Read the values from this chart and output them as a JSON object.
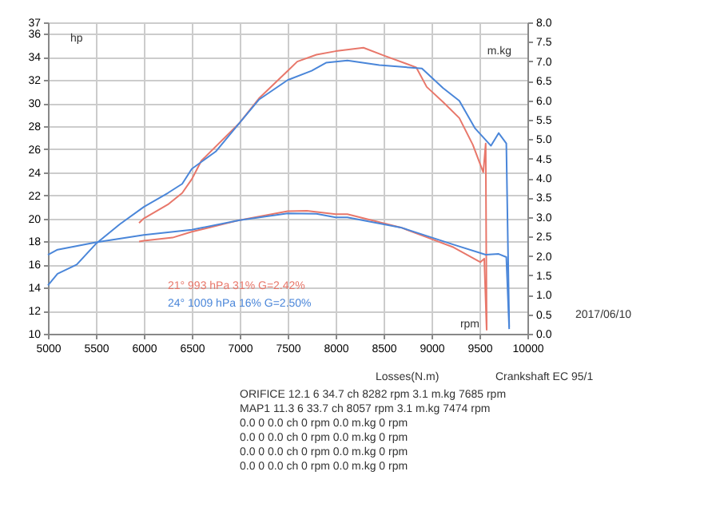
{
  "chart_data": {
    "type": "line",
    "xlabel": "rpm",
    "ylabel": "hp",
    "y2label": "m.kg",
    "xlim": [
      5000,
      10000
    ],
    "xticks": [
      5000,
      5500,
      6000,
      6500,
      7000,
      7500,
      8000,
      8500,
      9000,
      9500,
      10000
    ],
    "ylim": [
      10,
      37
    ],
    "yticks": [
      10,
      12,
      14,
      16,
      18,
      20,
      22,
      24,
      26,
      28,
      30,
      32,
      34,
      36,
      37
    ],
    "y2lim": [
      0,
      8
    ],
    "y2ticks": [
      {
        "value": 0,
        "label": "0.0"
      },
      {
        "value": 0.5,
        "label": "0.5"
      },
      {
        "value": 1,
        "label": "1.0"
      },
      {
        "value": 1.5,
        "label": "1.5"
      },
      {
        "value": 2,
        "label": "2.0"
      },
      {
        "value": 2.5,
        "label": "2.5"
      },
      {
        "value": 3,
        "label": "3.0"
      },
      {
        "value": 3.5,
        "label": "3.5"
      },
      {
        "value": 4,
        "label": "4.0"
      },
      {
        "value": 4.5,
        "label": "4.5"
      },
      {
        "value": 5,
        "label": "5.0"
      },
      {
        "value": 5.5,
        "label": "5.5"
      },
      {
        "value": 6,
        "label": "6.0"
      },
      {
        "value": 6.5,
        "label": "6.5"
      },
      {
        "value": 7,
        "label": "7.0"
      },
      {
        "value": 7.5,
        "label": "7.5"
      },
      {
        "value": 8,
        "label": "8.0"
      }
    ],
    "grid": true,
    "line_style": "solid",
    "marker": "none",
    "series": [
      {
        "color": "#e8776a",
        "x": [
          5950,
          6000,
          6250,
          6400,
          6500,
          6600,
          7000,
          7200,
          7400,
          7500,
          7600,
          7800,
          8000,
          8290,
          8510,
          8840,
          8950,
          9120,
          9290,
          9430,
          9540,
          9565,
          9575
        ],
        "values": [
          19.6,
          20.0,
          21.2,
          22.2,
          23.4,
          25.0,
          28.3,
          30.4,
          32.0,
          32.8,
          33.6,
          34.2,
          34.5,
          34.8,
          34.1,
          33.1,
          31.4,
          30.1,
          28.7,
          26.4,
          24.0,
          26.5,
          10.3
        ]
      },
      {
        "color": "#4a86d9",
        "x": [
          5000,
          5100,
          5300,
          5500,
          5750,
          6000,
          6250,
          6400,
          6500,
          6750,
          7000,
          7200,
          7500,
          7750,
          7900,
          8123,
          8455,
          8900,
          9120,
          9290,
          9455,
          9620,
          9700,
          9780,
          9810
        ],
        "values": [
          14.2,
          15.2,
          16.0,
          17.8,
          19.5,
          21.0,
          22.2,
          23.0,
          24.3,
          25.8,
          28.3,
          30.3,
          32.0,
          32.8,
          33.5,
          33.7,
          33.3,
          33.0,
          31.3,
          30.2,
          27.8,
          26.3,
          27.4,
          26.5,
          10.6
        ]
      },
      {
        "color": "#e8776a",
        "axis": "y2",
        "x": [
          5950,
          6000,
          6300,
          6500,
          7000,
          7500,
          7700,
          8000,
          8123,
          8680,
          8950,
          9230,
          9510,
          9550,
          9575
        ],
        "values": [
          2.37,
          2.39,
          2.47,
          2.62,
          2.92,
          3.15,
          3.16,
          3.07,
          3.07,
          2.73,
          2.48,
          2.22,
          1.84,
          1.93,
          0.1
        ]
      },
      {
        "color": "#4a86d9",
        "axis": "y2",
        "x": [
          5000,
          5100,
          5500,
          6000,
          6500,
          7000,
          7500,
          7800,
          8000,
          8123,
          8680,
          9230,
          9565,
          9700,
          9780,
          9810
        ],
        "values": [
          2.03,
          2.16,
          2.35,
          2.54,
          2.67,
          2.92,
          3.09,
          3.08,
          2.99,
          2.99,
          2.73,
          2.29,
          2.03,
          2.05,
          1.97,
          0.12
        ]
      }
    ],
    "annotations": [
      "21° 993 hPa 31% G=2.42%",
      "24° 1009 hPa 16% G=2.50%",
      "2017/06/10",
      "Losses(N.m)",
      "Crankshaft EC 95/1",
      "ORIFICE   12.1  6   34.7 ch 8282 rpm   3.1 m.kg 7685 rpm",
      "MAP1   11.3  6   33.7 ch 8057 rpm   3.1 m.kg 7474 rpm",
      "0.0  0   0.0 ch 0 rpm   0.0 m.kg 0 rpm",
      "0.0  0   0.0 ch 0 rpm   0.0 m.kg 0 rpm",
      "0.0  0   0.0 ch 0 rpm   0.0 m.kg 0 rpm",
      "0.0  0   0.0 ch 0 rpm   0.0 m.kg 0 rpm"
    ]
  }
}
